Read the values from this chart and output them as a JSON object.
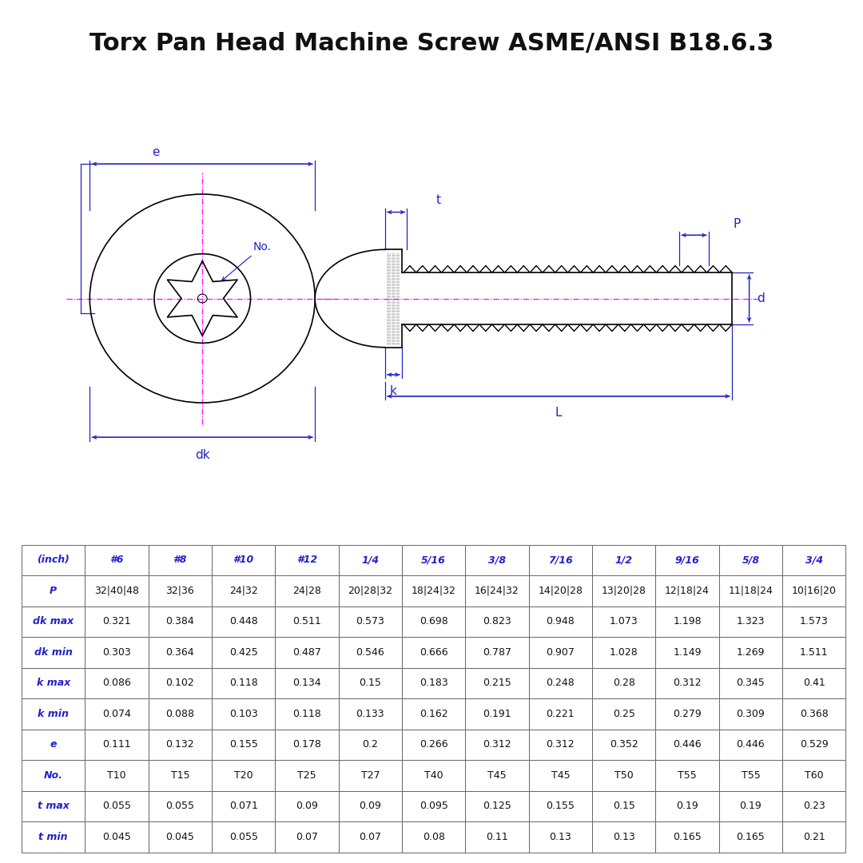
{
  "title": "Torx Pan Head Machine Screw ASME/ANSI B18.6.3",
  "title_fontsize": 22,
  "title_fontweight": "bold",
  "bg_color": "#ffffff",
  "drawing_color": "#2222cc",
  "magenta_color": "#ff00ff",
  "dark_color": "#111111",
  "col_headers": [
    "(inch)",
    "#6",
    "#8",
    "#10",
    "#12",
    "1/4",
    "5/16",
    "3/8",
    "7/16",
    "1/2",
    "9/16",
    "5/8",
    "3/4"
  ],
  "row_labels": [
    "P",
    "dk max",
    "dk min",
    "k max",
    "k min",
    "e",
    "No.",
    "t max",
    "t min"
  ],
  "table_data": [
    [
      "32|40|48",
      "32|36",
      "24|32",
      "24|28",
      "20|28|32",
      "18|24|32",
      "16|24|32",
      "14|20|28",
      "13|20|28",
      "12|18|24",
      "11|18|24",
      "10|16|20"
    ],
    [
      "0.321",
      "0.384",
      "0.448",
      "0.511",
      "0.573",
      "0.698",
      "0.823",
      "0.948",
      "1.073",
      "1.198",
      "1.323",
      "1.573"
    ],
    [
      "0.303",
      "0.364",
      "0.425",
      "0.487",
      "0.546",
      "0.666",
      "0.787",
      "0.907",
      "1.028",
      "1.149",
      "1.269",
      "1.511"
    ],
    [
      "0.086",
      "0.102",
      "0.118",
      "0.134",
      "0.15",
      "0.183",
      "0.215",
      "0.248",
      "0.28",
      "0.312",
      "0.345",
      "0.41"
    ],
    [
      "0.074",
      "0.088",
      "0.103",
      "0.118",
      "0.133",
      "0.162",
      "0.191",
      "0.221",
      "0.25",
      "0.279",
      "0.309",
      "0.368"
    ],
    [
      "0.111",
      "0.132",
      "0.155",
      "0.178",
      "0.2",
      "0.266",
      "0.312",
      "0.312",
      "0.352",
      "0.446",
      "0.446",
      "0.529"
    ],
    [
      "T10",
      "T15",
      "T20",
      "T25",
      "T27",
      "T40",
      "T45",
      "T45",
      "T50",
      "T55",
      "T55",
      "T60"
    ],
    [
      "0.055",
      "0.055",
      "0.071",
      "0.09",
      "0.09",
      "0.095",
      "0.125",
      "0.155",
      "0.15",
      "0.19",
      "0.19",
      "0.23"
    ],
    [
      "0.045",
      "0.045",
      "0.055",
      "0.07",
      "0.07",
      "0.08",
      "0.11",
      "0.13",
      "0.13",
      "0.165",
      "0.165",
      "0.21"
    ]
  ]
}
